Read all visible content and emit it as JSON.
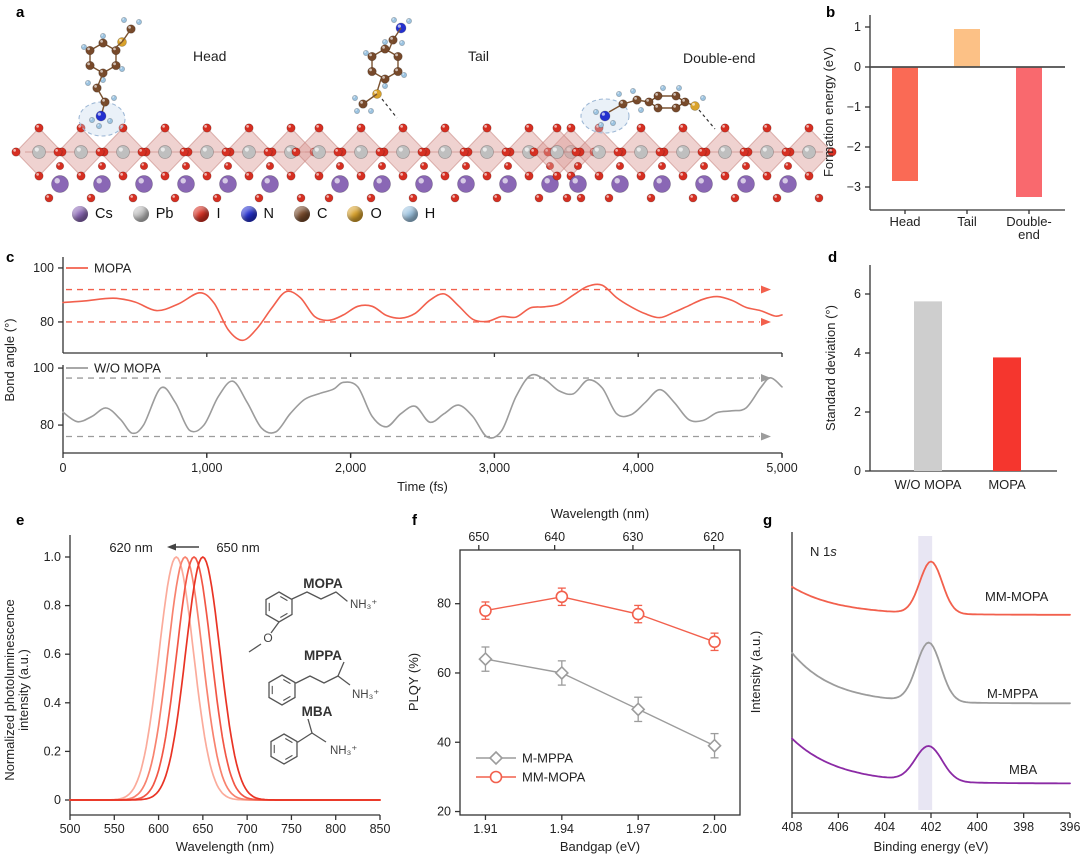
{
  "panels": {
    "a": "a",
    "b": "b",
    "c": "c",
    "d": "d",
    "e": "e",
    "f": "f",
    "g": "g"
  },
  "colors": {
    "axis": "#333333",
    "salmon": "#f2604d",
    "bright_red": "#f5362e",
    "gray_line": "#9c9c9c",
    "gray_bar": "#cecece",
    "purple": "#8b2aa5",
    "band": "#e8e6f3",
    "zero_line": "#4d4d4d"
  },
  "panel_a": {
    "structures": [
      {
        "label": "Head"
      },
      {
        "label": "Tail"
      },
      {
        "label": "Double-end"
      }
    ],
    "legend": [
      {
        "symbol": "Cs",
        "color": "#8a67b5"
      },
      {
        "symbol": "Pb",
        "color": "#bfbfbf"
      },
      {
        "symbol": "I",
        "color": "#d62f22"
      },
      {
        "symbol": "N",
        "color": "#2430cf"
      },
      {
        "symbol": "C",
        "color": "#77492a"
      },
      {
        "symbol": "O",
        "color": "#d9a22b"
      },
      {
        "symbol": "H",
        "color": "#9cc3e0"
      }
    ]
  },
  "chart_data": [
    {
      "id": "b",
      "type": "bar",
      "ylabel": "Formation energy (eV)",
      "categories": [
        "Head",
        "Tail",
        "Double-end"
      ],
      "category_lines": [
        [
          "Head"
        ],
        [
          "Tail"
        ],
        [
          "Double-",
          "end"
        ]
      ],
      "values": [
        -2.85,
        0.95,
        -3.25
      ],
      "bar_colors": [
        "#fa6a55",
        "#fcc186",
        "#f9696e"
      ],
      "yticks": [
        1,
        0,
        -1,
        -2,
        -3
      ],
      "ytick_labels": [
        "1",
        "0",
        "−1",
        "−2",
        "−3"
      ],
      "ylim": [
        -3.6,
        1.3
      ]
    },
    {
      "id": "c",
      "type": "line",
      "ylabel": "Bond angle (°)",
      "xlabel": "Time (fs)",
      "xlim": [
        0,
        5000
      ],
      "xticks": [
        0,
        1000,
        2000,
        3000,
        4000,
        5000
      ],
      "xtick_labels": [
        "0",
        "1,000",
        "2,000",
        "3,000",
        "4,000",
        "5,000"
      ],
      "subplots": [
        {
          "legend": "MOPA",
          "color": "#f2604d",
          "dashed_lines": [
            92,
            80
          ],
          "yticks": [
            100,
            80
          ],
          "ylim": [
            68.5,
            104
          ],
          "points": [
            [
              0,
              87.2
            ],
            [
              150,
              87.8
            ],
            [
              350,
              88.8
            ],
            [
              500,
              87.4
            ],
            [
              650,
              84.2
            ],
            [
              800,
              86.6
            ],
            [
              950,
              90.8
            ],
            [
              1050,
              87
            ],
            [
              1150,
              77
            ],
            [
              1250,
              73.2
            ],
            [
              1350,
              77.6
            ],
            [
              1450,
              85
            ],
            [
              1550,
              91.2
            ],
            [
              1650,
              89
            ],
            [
              1750,
              82
            ],
            [
              1850,
              80.6
            ],
            [
              1950,
              82.6
            ],
            [
              2050,
              85.8
            ],
            [
              2150,
              85.8
            ],
            [
              2250,
              82.4
            ],
            [
              2350,
              81.4
            ],
            [
              2450,
              83.2
            ],
            [
              2550,
              88
            ],
            [
              2650,
              90.4
            ],
            [
              2750,
              86
            ],
            [
              2850,
              81
            ],
            [
              2950,
              80.2
            ],
            [
              3050,
              82
            ],
            [
              3150,
              81.8
            ],
            [
              3250,
              85.2
            ],
            [
              3350,
              85.6
            ],
            [
              3450,
              86.6
            ],
            [
              3550,
              90
            ],
            [
              3650,
              93.2
            ],
            [
              3750,
              93.6
            ],
            [
              3850,
              89
            ],
            [
              3950,
              85.6
            ],
            [
              4050,
              83
            ],
            [
              4150,
              81.6
            ],
            [
              4250,
              83.6
            ],
            [
              4350,
              86
            ],
            [
              4450,
              88.4
            ],
            [
              4550,
              89.4
            ],
            [
              4650,
              88
            ],
            [
              4750,
              85.4
            ],
            [
              4850,
              84.2
            ],
            [
              4950,
              82.2
            ],
            [
              5000,
              82.6
            ]
          ]
        },
        {
          "legend": "W/O MOPA",
          "color": "#9c9c9c",
          "dashed_lines": [
            96.5,
            76
          ],
          "yticks": [
            100,
            80
          ],
          "ylim": [
            70.2,
            103.5
          ],
          "points": [
            [
              0,
              84.5
            ],
            [
              100,
              81.2
            ],
            [
              200,
              83
            ],
            [
              300,
              86
            ],
            [
              400,
              82
            ],
            [
              480,
              77.2
            ],
            [
              560,
              80
            ],
            [
              680,
              93
            ],
            [
              780,
              88
            ],
            [
              880,
              78.2
            ],
            [
              980,
              80
            ],
            [
              1080,
              90
            ],
            [
              1180,
              95.4
            ],
            [
              1280,
              88
            ],
            [
              1380,
              79
            ],
            [
              1480,
              77.6
            ],
            [
              1580,
              84
            ],
            [
              1680,
              89
            ],
            [
              1780,
              91
            ],
            [
              1880,
              92.6
            ],
            [
              1950,
              95
            ],
            [
              2050,
              93.4
            ],
            [
              2150,
              83
            ],
            [
              2250,
              79.4
            ],
            [
              2350,
              84
            ],
            [
              2450,
              86.6
            ],
            [
              2550,
              81
            ],
            [
              2650,
              84
            ],
            [
              2750,
              87
            ],
            [
              2850,
              83
            ],
            [
              2950,
              75.8
            ],
            [
              3050,
              78
            ],
            [
              3150,
              90
            ],
            [
              3250,
              97.4
            ],
            [
              3350,
              96
            ],
            [
              3450,
              92
            ],
            [
              3550,
              91
            ],
            [
              3650,
              95.8
            ],
            [
              3750,
              93
            ],
            [
              3850,
              84
            ],
            [
              3950,
              83.6
            ],
            [
              4050,
              88
            ],
            [
              4150,
              92.4
            ],
            [
              4250,
              88
            ],
            [
              4350,
              82
            ],
            [
              4450,
              81.6
            ],
            [
              4550,
              84.4
            ],
            [
              4650,
              85
            ],
            [
              4750,
              86
            ],
            [
              4850,
              93
            ],
            [
              4920,
              96.6
            ],
            [
              5000,
              93.4
            ]
          ]
        }
      ]
    },
    {
      "id": "d",
      "type": "bar",
      "ylabel": "Standard deviation (°)",
      "categories": [
        "W/O MOPA",
        "MOPA"
      ],
      "values": [
        5.75,
        3.85
      ],
      "bar_colors": [
        "#cecece",
        "#f5362e"
      ],
      "yticks": [
        0,
        2,
        4,
        6
      ],
      "ylim": [
        0,
        7
      ]
    },
    {
      "id": "e",
      "type": "line",
      "xlabel": "Wavelength (nm)",
      "ylabel_lines": [
        "Normalized photoluminescence",
        "intensity (a.u.)"
      ],
      "annotation": {
        "target": "620 nm",
        "source": "650 nm",
        "arrow": "left"
      },
      "xticks": [
        500,
        550,
        600,
        650,
        700,
        750,
        800,
        850
      ],
      "yticks": [
        0,
        0.2,
        0.4,
        0.6,
        0.8,
        1.0
      ],
      "ytick_labels": [
        "0",
        "0.2",
        "0.4",
        "0.6",
        "0.8",
        "1.0"
      ],
      "peak_sigma_nm": 19.5,
      "peak_height": 1.0,
      "peaks": [
        {
          "center_nm": 620,
          "color": "#fbab9b"
        },
        {
          "center_nm": 630,
          "color": "#f8826e"
        },
        {
          "center_nm": 640,
          "color": "#f25645"
        },
        {
          "center_nm": 650,
          "color": "#e93425"
        }
      ],
      "molecules": [
        {
          "name": "MOPA",
          "amine": "NH₃⁺",
          "hetero": "O"
        },
        {
          "name": "MPPA",
          "amine": "NH₃⁺"
        },
        {
          "name": "MBA",
          "amine": "NH₃⁺"
        }
      ]
    },
    {
      "id": "f",
      "type": "scatter",
      "xlabel": "Bandgap (eV)",
      "ylabel": "PLQY (%)",
      "top_xlabel": "Wavelength (nm)",
      "top_ticks": [
        650,
        640,
        630,
        620
      ],
      "xticks": [
        1.91,
        1.94,
        1.97,
        2.0
      ],
      "xtick_labels": [
        "1.91",
        "1.94",
        "1.97",
        "2.00"
      ],
      "yticks": [
        20,
        40,
        60,
        80
      ],
      "ylim": [
        19,
        95.5
      ],
      "xlim": [
        1.9,
        2.01
      ],
      "series": [
        {
          "name": "M-MPPA",
          "marker": "diamond",
          "color": "#9c9c9c",
          "x": [
            1.91,
            1.94,
            1.97,
            2.0
          ],
          "y": [
            64,
            60,
            49.5,
            39
          ],
          "err": [
            3.5,
            3.5,
            3.5,
            3.5
          ]
        },
        {
          "name": "MM-MOPA",
          "marker": "circle",
          "color": "#f2604d",
          "x": [
            1.91,
            1.94,
            1.97,
            2.0
          ],
          "y": [
            78,
            82,
            77,
            69
          ],
          "err": [
            2.5,
            2.5,
            2.5,
            2.5
          ]
        }
      ]
    },
    {
      "id": "g",
      "type": "line",
      "xlabel": "Binding energy (eV)",
      "ylabel": "Intensity (a.u.)",
      "annotation": "N 1s",
      "xticks": [
        408,
        406,
        404,
        402,
        400,
        398,
        396
      ],
      "xlim": [
        408,
        396
      ],
      "highlight_band_ev": [
        402.55,
        401.95
      ],
      "curves": [
        {
          "name": "MM-MOPA",
          "color": "#f2604d",
          "offset": 0.705,
          "bg_amp": 0.1,
          "bg_decay": 2.0,
          "peak_center": 402.0,
          "peak_amp": 0.185,
          "peak_sigma": 0.48
        },
        {
          "name": "M-MPPA",
          "color": "#9c9c9c",
          "offset": 0.39,
          "bg_amp": 0.18,
          "bg_decay": 1.8,
          "peak_center": 402.1,
          "peak_amp": 0.21,
          "peak_sigma": 0.52
        },
        {
          "name": "MBA",
          "color": "#8b2aa5",
          "offset": 0.105,
          "bg_amp": 0.16,
          "bg_decay": 2.0,
          "peak_center": 402.1,
          "peak_amp": 0.125,
          "peak_sigma": 0.58
        }
      ]
    }
  ]
}
